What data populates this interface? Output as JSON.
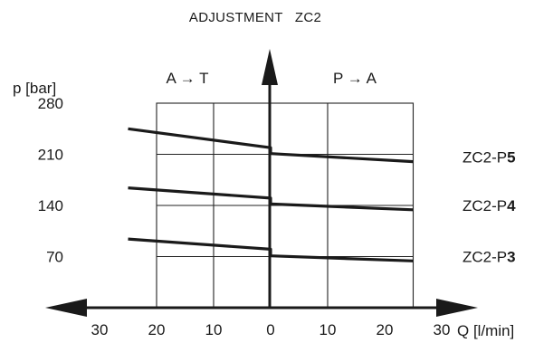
{
  "chart_data": {
    "type": "line",
    "title": "ADJUSTMENT   ZC2",
    "ylabel": "p [bar]",
    "xlabel": "Q [l/min]",
    "region_left": "A → T",
    "region_right": "P → A",
    "xlim": [
      -30,
      30
    ],
    "ylim": [
      0,
      280
    ],
    "x_ticks": [
      -30,
      -20,
      -10,
      0,
      10,
      20,
      30
    ],
    "x_tick_labels": [
      "30",
      "20",
      "10",
      "0",
      "10",
      "20",
      "30"
    ],
    "y_ticks": [
      70,
      140,
      210,
      280
    ],
    "y_tick_labels": [
      "70",
      "140",
      "210",
      "280"
    ],
    "grid": true,
    "series": [
      {
        "name_prefix": "ZC2-P",
        "name_suffix": "5",
        "left": {
          "x": [
            -25,
            0
          ],
          "y": [
            245,
            219
          ]
        },
        "right": {
          "x": [
            0,
            25
          ],
          "y": [
            211,
            200
          ]
        }
      },
      {
        "name_prefix": "ZC2-P",
        "name_suffix": "4",
        "left": {
          "x": [
            -25,
            0
          ],
          "y": [
            164,
            150
          ]
        },
        "right": {
          "x": [
            0,
            25
          ],
          "y": [
            142,
            134
          ]
        }
      },
      {
        "name_prefix": "ZC2-P",
        "name_suffix": "3",
        "left": {
          "x": [
            -25,
            0
          ],
          "y": [
            94,
            80
          ]
        },
        "right": {
          "x": [
            0,
            25
          ],
          "y": [
            71,
            64
          ]
        }
      }
    ]
  }
}
